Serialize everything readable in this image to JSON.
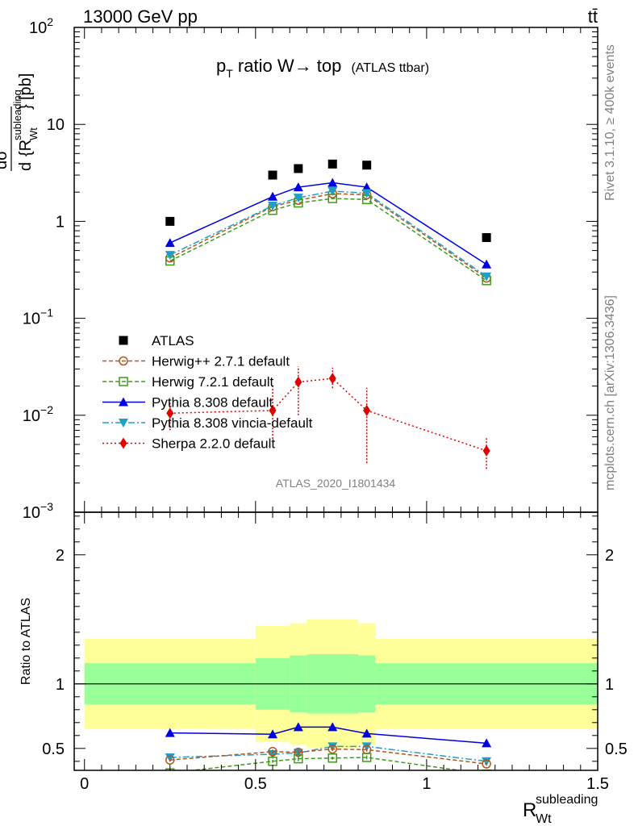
{
  "header": {
    "left": "13000 GeV pp",
    "right": "tt̄"
  },
  "side_labels": {
    "rivet": "Rivet 3.1.10, ≥ 400k events",
    "mcplots": "mcplots.cern.ch [arXiv:1306.3436]"
  },
  "analysis_id": "ATLAS_2020_I1801434",
  "colors": {
    "atlas": "#000000",
    "herwigpp": "#b5541c",
    "herwig7": "#3e9b1a",
    "pythia": "#0000e0",
    "vincia": "#1ca0c8",
    "sherpa": "#e00000",
    "band_inner": "#99ff99",
    "band_outer": "#ffff99"
  },
  "chart_data": [
    {
      "type": "line",
      "title": "p_T ratio W → top",
      "title_main": "p",
      "title_sub": "T",
      "title_rest": " ratio W",
      "title_arrow": "→",
      "title_end": " top",
      "title_extra": "(ATLAS ttbar)",
      "ylabel": "dσ/d{R_Wt^subleading} [pb]",
      "yunit": "[pb]",
      "yscale": "log",
      "ylim": [
        0.001,
        100
      ],
      "xlim": [
        -0.03,
        1.5
      ],
      "y_ticks": [
        {
          "value": 0.001,
          "base": "10",
          "exp": "−3"
        },
        {
          "value": 0.01,
          "base": "10",
          "exp": "−2"
        },
        {
          "value": 0.1,
          "base": "10",
          "exp": "−1"
        },
        {
          "value": 1,
          "base": "1",
          "exp": ""
        },
        {
          "value": 10,
          "base": "10",
          "exp": ""
        },
        {
          "value": 100,
          "base": "10",
          "exp": "2"
        }
      ],
      "legend_position": "center-left",
      "series": [
        {
          "name": "ATLAS",
          "key": "atlas",
          "marker": "square",
          "line": "none",
          "x": [
            0.25,
            0.55,
            0.625,
            0.725,
            0.825,
            1.175
          ],
          "y": [
            1.0,
            3.0,
            3.5,
            3.9,
            3.8,
            0.68
          ]
        },
        {
          "name": "Herwig++ 2.7.1 default",
          "key": "herwigpp",
          "marker": "circle-open",
          "line": "dashed",
          "x": [
            0.25,
            0.55,
            0.625,
            0.725,
            0.825,
            1.175
          ],
          "y": [
            0.42,
            1.42,
            1.65,
            1.93,
            1.88,
            0.26
          ]
        },
        {
          "name": "Herwig 7.2.1 default",
          "key": "herwig7",
          "marker": "square-open",
          "line": "dashed",
          "x": [
            0.25,
            0.55,
            0.625,
            0.725,
            0.825,
            1.175
          ],
          "y": [
            0.39,
            1.3,
            1.55,
            1.72,
            1.68,
            0.245
          ]
        },
        {
          "name": "Pythia 8.308 default",
          "key": "pythia",
          "marker": "triangle-up",
          "line": "solid",
          "x": [
            0.25,
            0.55,
            0.625,
            0.725,
            0.825,
            1.175
          ],
          "y": [
            0.6,
            1.8,
            2.25,
            2.5,
            2.25,
            0.36
          ]
        },
        {
          "name": "Pythia 8.308 vincia-default",
          "key": "vincia",
          "marker": "triangle-down",
          "line": "dashdot",
          "x": [
            0.25,
            0.55,
            0.625,
            0.725,
            0.825,
            1.175
          ],
          "y": [
            0.45,
            1.45,
            1.75,
            2.05,
            1.95,
            0.27
          ]
        },
        {
          "name": "Sherpa 2.2.0 default",
          "key": "sherpa",
          "marker": "diamond",
          "line": "dotted",
          "x": [
            0.25,
            0.55,
            0.625,
            0.725,
            0.825,
            1.175
          ],
          "y": [
            0.0105,
            0.0112,
            0.022,
            0.024,
            0.0112,
            0.0043
          ],
          "err_lo": [
            0.0035,
            0.0055,
            0.012,
            0.005,
            0.008,
            0.0015
          ],
          "err_hi": [
            0.003,
            0.009,
            0.01,
            0.007,
            0.008,
            0.0015
          ]
        }
      ]
    },
    {
      "type": "line",
      "ylabel": "Ratio to ATLAS",
      "xlabel": "R_Wt^subleading",
      "xlabel_main": "R",
      "xlabel_sup": "subleading",
      "xlabel_sub": "Wt",
      "ylim": [
        0.33,
        2.33
      ],
      "xlim": [
        -0.03,
        1.5
      ],
      "y_ticks": [
        0.5,
        1,
        2
      ],
      "x_ticks": [
        0,
        0.5,
        1,
        1.5
      ],
      "y_tick_labels": [
        "0.5",
        "1",
        "2"
      ],
      "x_tick_labels": [
        "0",
        "0.5",
        "1",
        "1.5"
      ],
      "bands": {
        "edges": [
          0,
          0.5,
          0.6,
          0.65,
          0.8,
          0.85,
          1.5
        ],
        "inner_lo": [
          0.84,
          0.8,
          0.78,
          0.77,
          0.78,
          0.84
        ],
        "inner_hi": [
          1.16,
          1.2,
          1.22,
          1.23,
          1.22,
          1.16
        ],
        "outer_lo": [
          0.65,
          0.55,
          0.53,
          0.5,
          0.53,
          0.65
        ],
        "outer_hi": [
          1.35,
          1.45,
          1.47,
          1.5,
          1.47,
          1.35
        ]
      },
      "series": [
        {
          "name": "Pythia 8.308 default",
          "key": "pythia",
          "marker": "triangle-up",
          "line": "solid",
          "x": [
            0.25,
            0.55,
            0.625,
            0.725,
            0.825,
            1.175
          ],
          "y": [
            0.62,
            0.61,
            0.665,
            0.665,
            0.615,
            0.54
          ],
          "err": [
            0.015,
            0.02,
            0.03,
            0.012,
            0.02,
            0.015
          ]
        },
        {
          "name": "Pythia 8.308 vincia-default",
          "key": "vincia",
          "marker": "triangle-down",
          "line": "dashdot",
          "x": [
            0.25,
            0.55,
            0.625,
            0.725,
            0.825,
            1.175
          ],
          "y": [
            0.43,
            0.455,
            0.465,
            0.515,
            0.515,
            0.4
          ],
          "err": [
            0.01,
            0.015,
            0.02,
            0.015,
            0.015,
            0.01
          ]
        },
        {
          "name": "Herwig++ 2.7.1 default",
          "key": "herwigpp",
          "marker": "circle-open",
          "line": "dashed",
          "x": [
            0.25,
            0.55,
            0.625,
            0.725,
            0.825,
            1.175
          ],
          "y": [
            0.41,
            0.475,
            0.47,
            0.495,
            0.49,
            0.38
          ],
          "err": [
            0.01,
            0.015,
            0.02,
            0.015,
            0.015,
            0.01
          ]
        },
        {
          "name": "Herwig 7.2.1 default",
          "key": "herwig7",
          "marker": "square-open",
          "line": "dashed",
          "x": [
            0.25,
            0.55,
            0.625,
            0.725,
            0.825,
            1.175
          ],
          "y": [
            0.31,
            0.4,
            0.42,
            0.425,
            0.43,
            0.3
          ],
          "err": [
            0.01,
            0.012,
            0.02,
            0.012,
            0.015,
            0.01
          ]
        }
      ]
    }
  ]
}
